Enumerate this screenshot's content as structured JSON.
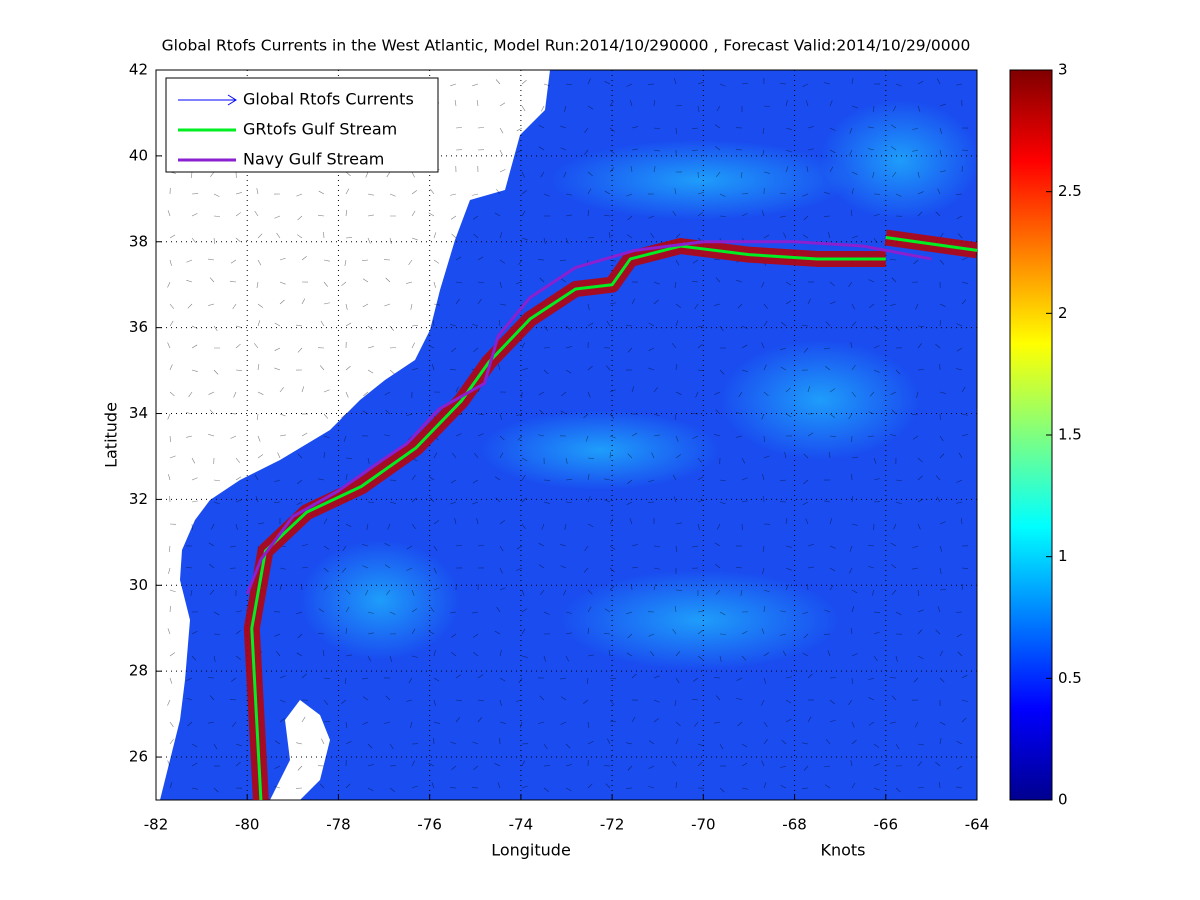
{
  "chart_data": {
    "type": "line",
    "title": "Global Rtofs Currents in the West Atlantic, Model Run:2014/10/290000 , Forecast Valid:2014/10/29/0000",
    "x_label": "Longitude",
    "y_label": "Latitude",
    "xlim": [
      -82,
      -64
    ],
    "ylim": [
      25,
      42
    ],
    "xticks": [
      -82,
      -80,
      -78,
      -76,
      -74,
      -72,
      -70,
      -68,
      -66,
      -64
    ],
    "yticks": [
      26,
      28,
      30,
      32,
      34,
      36,
      38,
      40,
      42
    ],
    "grid": true,
    "legend": "upper left",
    "series": [
      {
        "name": "Global Rtofs Currents",
        "color": "#0000ff"
      },
      {
        "name": "GRtofs Gulf Stream",
        "color": "#00ee22",
        "x": [
          -79.7,
          -79.8,
          -79.9,
          -79.6,
          -78.7,
          -77.5,
          -76.3,
          -75.3,
          -74.7,
          -73.8,
          -72.8,
          -72.0,
          -71.6,
          -70.5,
          -69.0,
          -67.5,
          -66.0,
          null,
          -66.0,
          -64.0
        ],
        "values": [
          25.0,
          27.0,
          29.0,
          30.8,
          31.7,
          32.3,
          33.2,
          34.3,
          35.2,
          36.2,
          36.9,
          37.0,
          37.6,
          37.9,
          37.7,
          37.6,
          37.6,
          null,
          38.1,
          37.8
        ]
      },
      {
        "name": "Navy Gulf Stream",
        "color": "#8a20d0",
        "x": [
          -80.0,
          -79.7,
          -79.0,
          -78.0,
          -77.2,
          -76.5,
          -75.8,
          -74.8,
          -74.5,
          -73.8,
          -72.8,
          -71.5,
          -70.0,
          -68.0,
          -66.5,
          -65.0
        ],
        "values": [
          29.8,
          30.6,
          31.6,
          32.2,
          32.8,
          33.3,
          34.1,
          34.7,
          35.8,
          36.7,
          37.4,
          37.8,
          38.0,
          38.0,
          37.9,
          37.6
        ]
      }
    ],
    "colorbar": {
      "label": "Knots",
      "lim": [
        0,
        3
      ],
      "ticks": [
        0,
        0.5,
        1,
        1.5,
        2,
        2.5,
        3
      ]
    }
  }
}
